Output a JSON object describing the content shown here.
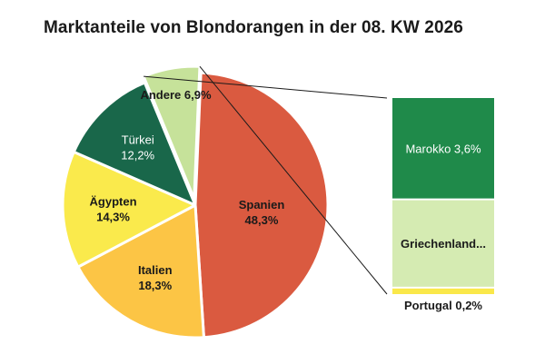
{
  "chart_data": {
    "type": "pie",
    "title": "Marktanteile von Blondorangen in der 08. KW 2026",
    "slices": [
      {
        "name": "Spanien",
        "label": "48,3%",
        "value": 48.3,
        "color": "#da5a40",
        "text_color": "#1a1a1a",
        "exploded": false
      },
      {
        "name": "Italien",
        "label": "18,3%",
        "value": 18.3,
        "color": "#fcc545",
        "text_color": "#1a1a1a",
        "exploded": false
      },
      {
        "name": "Ägypten",
        "label": "14,3%",
        "value": 14.3,
        "color": "#faea4c",
        "text_color": "#1a1a1a",
        "exploded": false
      },
      {
        "name": "Türkei",
        "label": "12,2%",
        "value": 12.2,
        "color": "#19674a",
        "text_color": "#ffffff",
        "exploded": false
      },
      {
        "name": "Andere",
        "label": "6,9%",
        "value": 6.9,
        "color": "#c6e29a",
        "text_color": "#1a1a1a",
        "exploded": true
      }
    ],
    "breakdown": {
      "parent": "Andere",
      "items": [
        {
          "name": "Marokko",
          "label": "3,6%",
          "value": 3.6,
          "color": "#1f8a4a",
          "text_color": "#ffffff",
          "display": "Marokko 3,6%"
        },
        {
          "name": "Griechenland",
          "value": 3.1,
          "color": "#d5ebb2",
          "text_color": "#1a1a1a",
          "display": "Griechenland..."
        },
        {
          "name": "Portugal",
          "label": "0,2%",
          "value": 0.2,
          "color": "#fae84a",
          "text_color": "#1a1a1a",
          "display": "Portugal 0,2%"
        }
      ]
    }
  }
}
